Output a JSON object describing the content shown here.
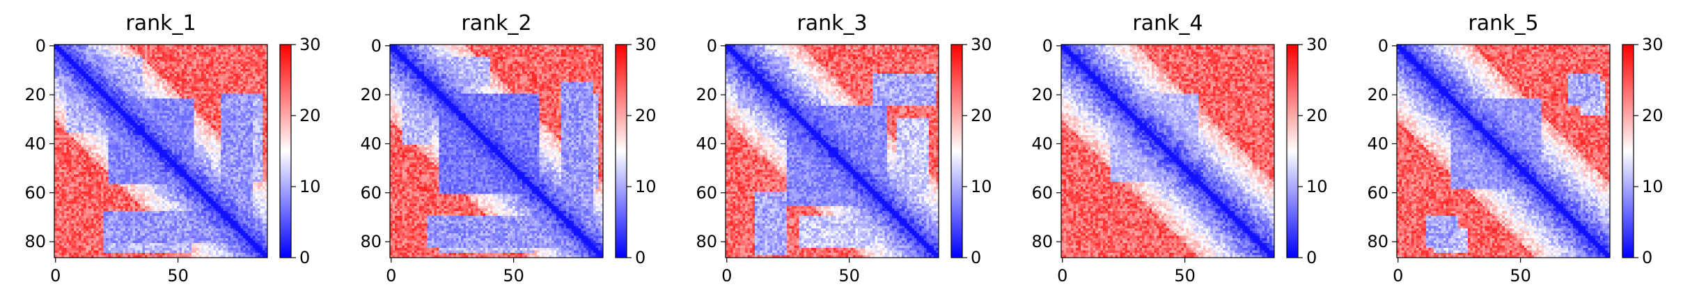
{
  "chart_data": [
    {
      "type": "heatmap",
      "title": "rank_1",
      "n": 87,
      "xticks": [
        "0",
        "50"
      ],
      "yticks": [
        "0",
        "20",
        "40",
        "60",
        "80"
      ],
      "colorbar": {
        "ticks": [
          "0",
          "10",
          "20",
          "30"
        ],
        "min": 0,
        "max": 30,
        "colormap": "bwr"
      },
      "cmap_colors": {
        "low": "#0000ff",
        "mid": "#ffffff",
        "high": "#ff0000"
      },
      "blocks": [
        {
          "type": "diagonal",
          "from": 0,
          "to": 87
        },
        {
          "type": "square",
          "from": 22,
          "to": 56,
          "value": 8
        },
        {
          "type": "offdiag",
          "rows": [
            68,
            80
          ],
          "cols": [
            20,
            75
          ],
          "value": 9
        },
        {
          "type": "offdiag",
          "rows": [
            5,
            16
          ],
          "cols": [
            6,
            35
          ],
          "value": 11
        },
        {
          "type": "offdiag",
          "rows": [
            20,
            55
          ],
          "cols": [
            72,
            84
          ],
          "value": 11
        }
      ]
    },
    {
      "type": "heatmap",
      "title": "rank_2",
      "n": 87,
      "xticks": [
        "0",
        "50"
      ],
      "yticks": [
        "0",
        "20",
        "40",
        "60",
        "80"
      ],
      "colorbar": {
        "ticks": [
          "0",
          "10",
          "20",
          "30"
        ],
        "min": 0,
        "max": 30,
        "colormap": "bwr"
      },
      "cmap_colors": {
        "low": "#0000ff",
        "mid": "#ffffff",
        "high": "#ff0000"
      },
      "blocks": [
        {
          "type": "diagonal",
          "from": 0,
          "to": 87
        },
        {
          "type": "square",
          "from": 20,
          "to": 60,
          "value": 7
        },
        {
          "type": "offdiag",
          "rows": [
            70,
            82
          ],
          "cols": [
            15,
            70
          ],
          "value": 9
        },
        {
          "type": "offdiag",
          "rows": [
            5,
            16
          ],
          "cols": [
            8,
            40
          ],
          "value": 11
        },
        {
          "type": "offdiag",
          "rows": [
            20,
            58
          ],
          "cols": [
            70,
            84
          ],
          "value": 11
        }
      ]
    },
    {
      "type": "heatmap",
      "title": "rank_3",
      "n": 87,
      "xticks": [
        "0",
        "50"
      ],
      "yticks": [
        "0",
        "20",
        "40",
        "60",
        "80"
      ],
      "colorbar": {
        "ticks": [
          "0",
          "10",
          "20",
          "30"
        ],
        "min": 0,
        "max": 30,
        "colormap": "bwr"
      },
      "cmap_colors": {
        "low": "#0000ff",
        "mid": "#ffffff",
        "high": "#ff0000"
      },
      "blocks": [
        {
          "type": "diagonal",
          "from": 0,
          "to": 87
        },
        {
          "type": "square",
          "from": 25,
          "to": 65,
          "value": 8
        },
        {
          "type": "offdiag",
          "rows": [
            60,
            85
          ],
          "cols": [
            12,
            24
          ],
          "value": 10
        },
        {
          "type": "offdiag",
          "rows": [
            5,
            18
          ],
          "cols": [
            8,
            25
          ],
          "value": 11
        },
        {
          "type": "offdiag",
          "rows": [
            30,
            60
          ],
          "cols": [
            70,
            82
          ],
          "value": 12
        }
      ]
    },
    {
      "type": "heatmap",
      "title": "rank_4",
      "n": 87,
      "xticks": [
        "0",
        "50"
      ],
      "yticks": [
        "0",
        "20",
        "40",
        "60",
        "80"
      ],
      "colorbar": {
        "ticks": [
          "0",
          "10",
          "20",
          "30"
        ],
        "min": 0,
        "max": 30,
        "colormap": "bwr"
      },
      "cmap_colors": {
        "low": "#0000ff",
        "mid": "#ffffff",
        "high": "#ff0000"
      },
      "blocks": [
        {
          "type": "diagonal",
          "from": 0,
          "to": 87
        },
        {
          "type": "square",
          "from": 20,
          "to": 55,
          "value": 11
        }
      ]
    },
    {
      "type": "heatmap",
      "title": "rank_5",
      "n": 87,
      "xticks": [
        "0",
        "50"
      ],
      "yticks": [
        "0",
        "20",
        "40",
        "60",
        "80"
      ],
      "colorbar": {
        "ticks": [
          "0",
          "10",
          "20",
          "30"
        ],
        "min": 0,
        "max": 30,
        "colormap": "bwr"
      },
      "cmap_colors": {
        "low": "#0000ff",
        "mid": "#ffffff",
        "high": "#ff0000"
      },
      "blocks": [
        {
          "type": "diagonal",
          "from": 0,
          "to": 87
        },
        {
          "type": "square",
          "from": 22,
          "to": 58,
          "value": 9
        },
        {
          "type": "offdiag",
          "rows": [
            70,
            82
          ],
          "cols": [
            12,
            24
          ],
          "value": 10
        },
        {
          "type": "offdiag",
          "rows": [
            15,
            28
          ],
          "cols": [
            75,
            84
          ],
          "value": 12
        }
      ]
    }
  ]
}
